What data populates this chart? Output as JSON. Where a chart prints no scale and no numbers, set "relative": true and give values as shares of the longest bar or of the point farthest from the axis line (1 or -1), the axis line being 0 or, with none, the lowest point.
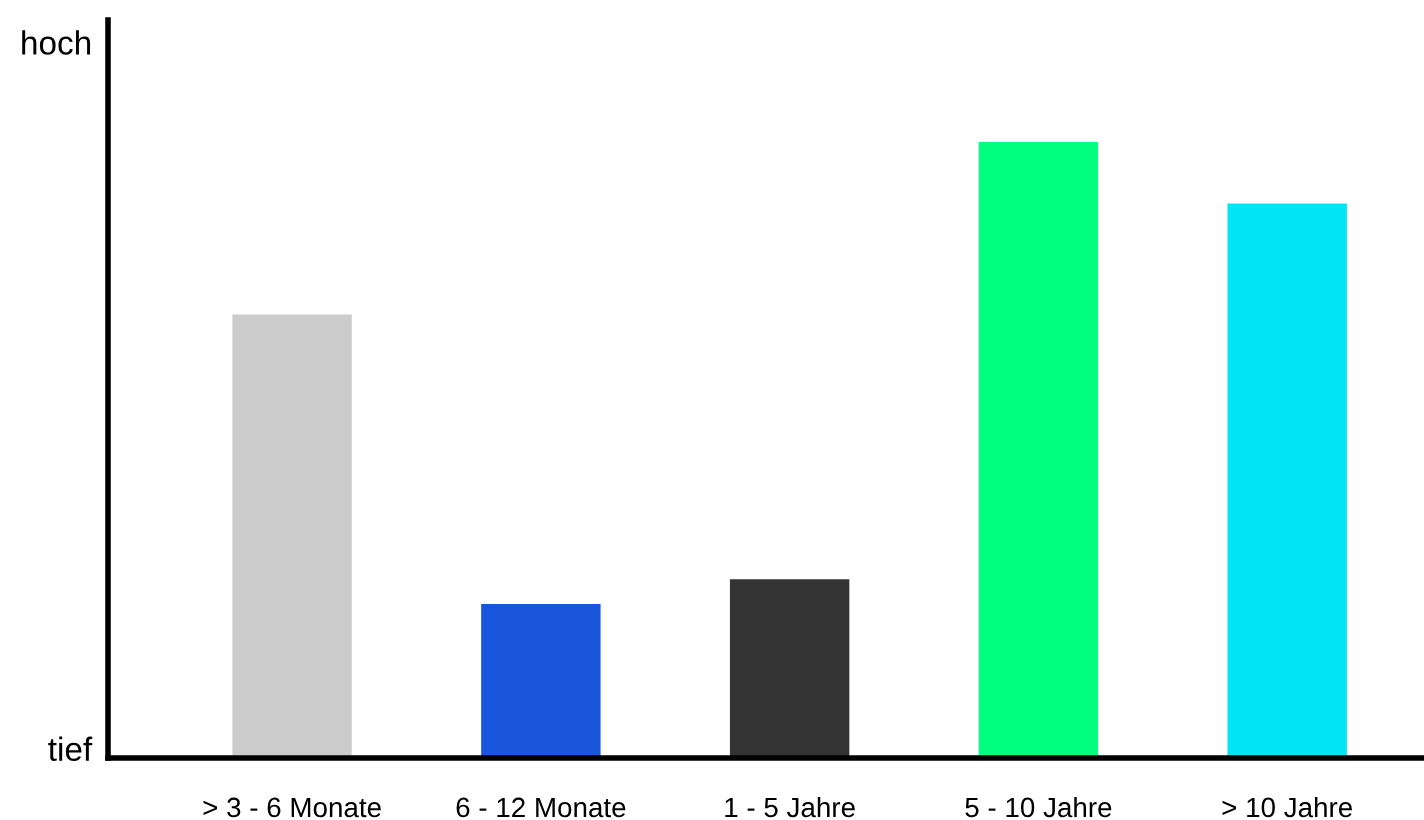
{
  "chart_data": {
    "type": "bar",
    "relative": true,
    "categories": [
      "> 3 - 6 Monate",
      "6 - 12 Monate",
      "1 - 5 Jahre",
      "5 - 10 Jahre",
      "> 10 Jahre"
    ],
    "values": [
      0.72,
      0.25,
      0.29,
      1,
      0.9
    ],
    "colors": [
      "#cccccc",
      "#1a56db",
      "#333333",
      "#00ff7f",
      "#00e5f5"
    ],
    "annotations": [
      "hoch",
      "tief"
    ],
    "grid": false,
    "legend": false
  }
}
